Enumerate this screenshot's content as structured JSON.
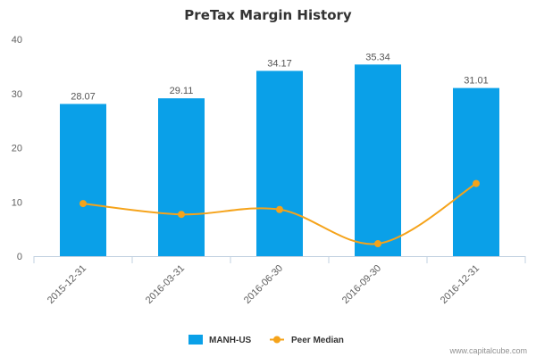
{
  "chart_data": {
    "type": "bar",
    "title": "PreTax Margin History",
    "categories": [
      "2015-12-31",
      "2016-03-31",
      "2016-06-30",
      "2016-09-30",
      "2016-12-31"
    ],
    "series": [
      {
        "name": "MANH-US",
        "type": "bar",
        "color": "#0aa0e8",
        "values": [
          28.07,
          29.11,
          34.17,
          35.34,
          31.01
        ],
        "labels": [
          "28.07",
          "29.11",
          "34.17",
          "35.34",
          "31.01"
        ]
      },
      {
        "name": "Peer Median",
        "type": "line",
        "color": "#f5a31a",
        "values": [
          9.7,
          7.7,
          8.6,
          2.3,
          13.4
        ]
      }
    ],
    "ylim": [
      0,
      40
    ],
    "yticks": [
      "0",
      "10",
      "20",
      "30",
      "40"
    ],
    "grid": false,
    "legend_position": "bottom-center"
  },
  "credit": "www.capitalcube.com"
}
